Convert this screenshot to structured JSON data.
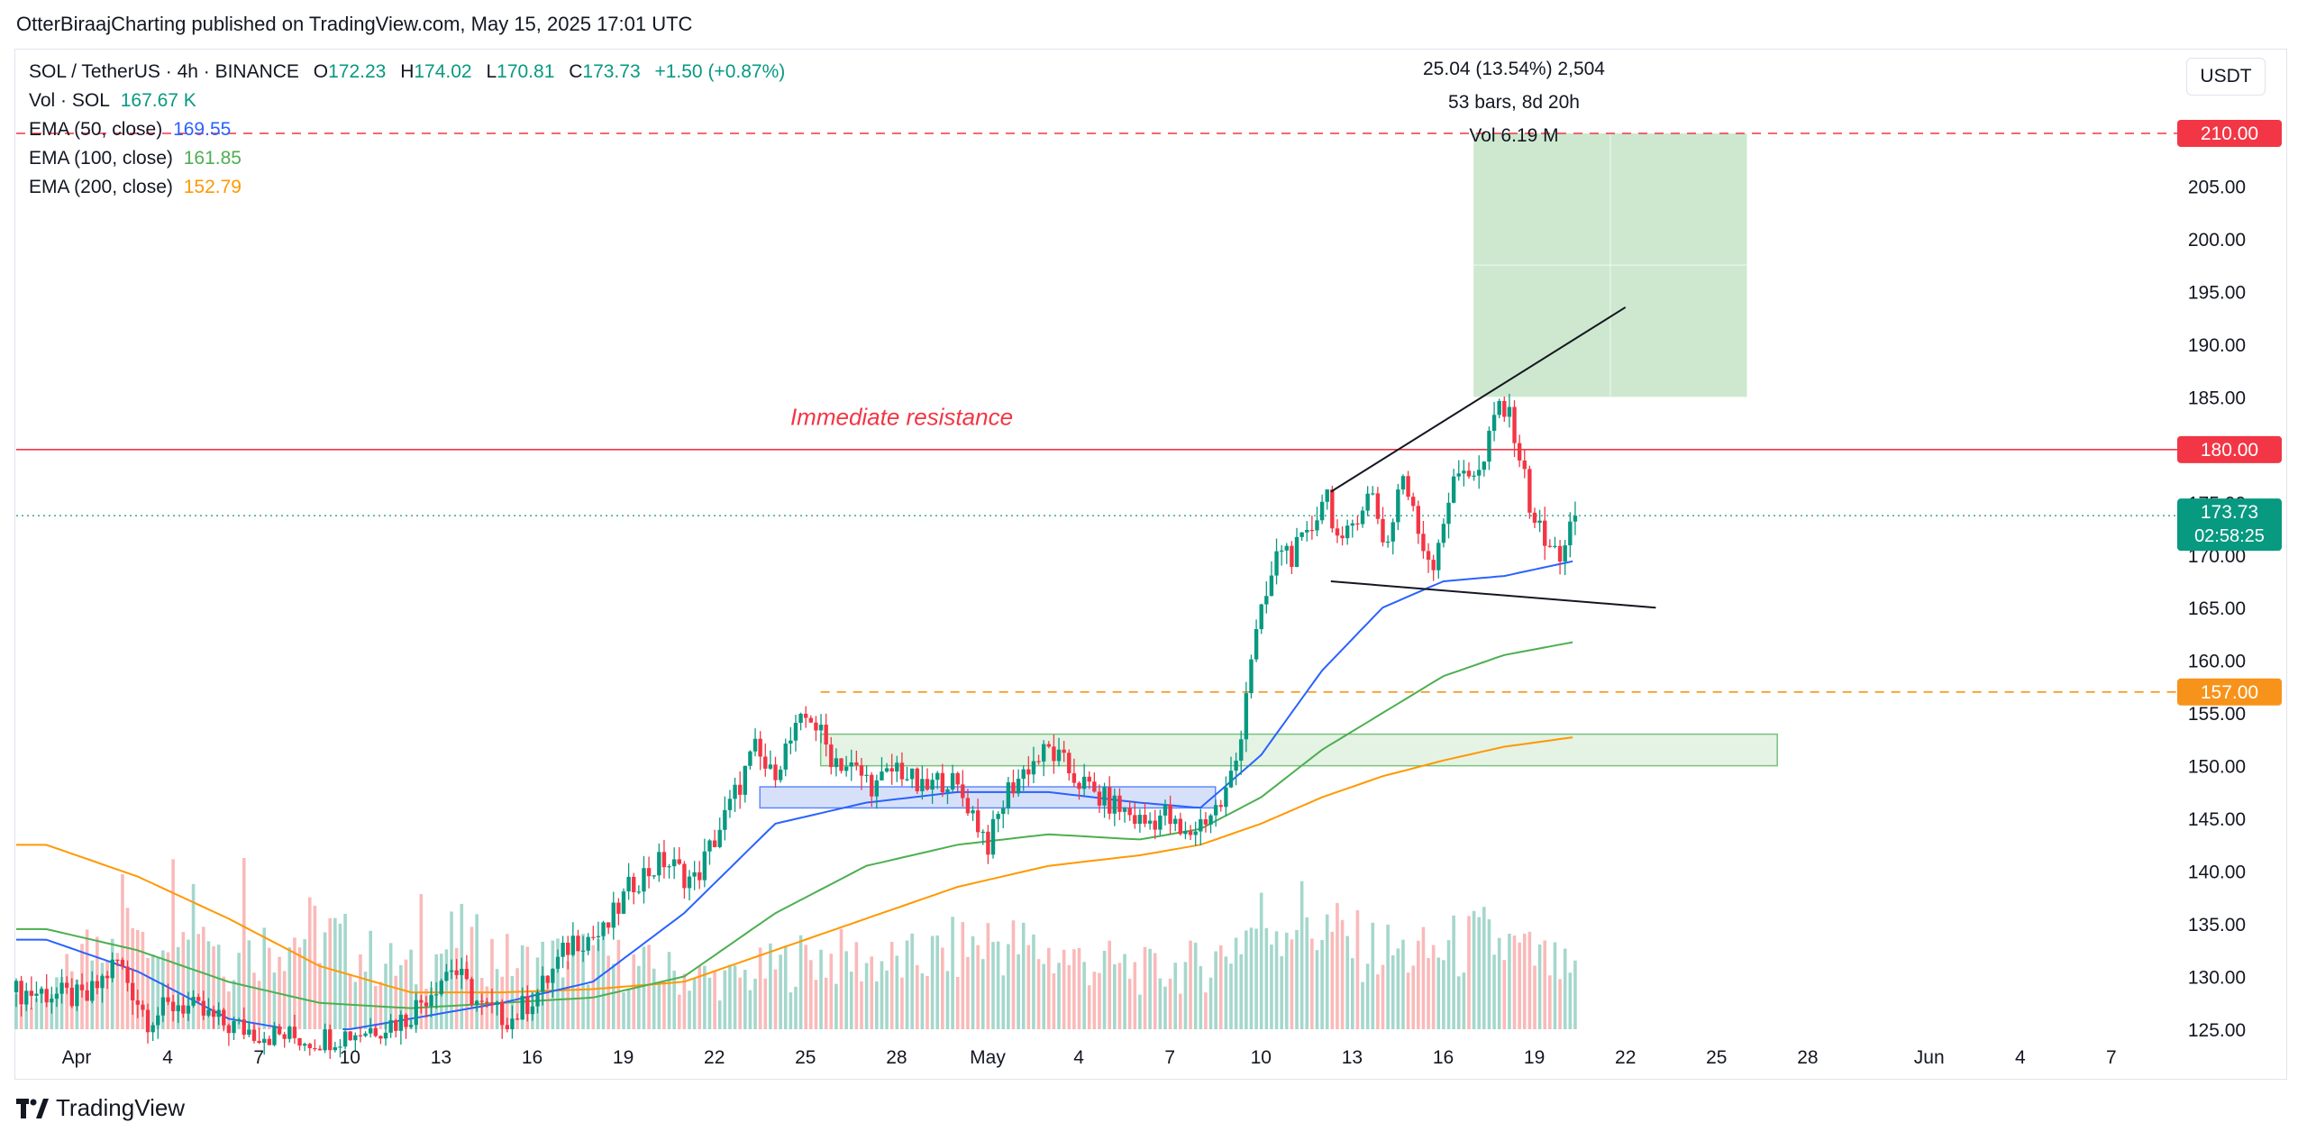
{
  "publisher_line": "OtterBiraajCharting published on TradingView.com, May 15, 2025 17:01 UTC",
  "footer": {
    "brand": "TradingView",
    "logo_icon": "tradingview-logo-icon"
  },
  "currency_button": "USDT",
  "legend": {
    "symbol": "SOL / TetherUS · 4h · BINANCE",
    "o_label": "O",
    "o": "172.23",
    "h_label": "H",
    "h": "174.02",
    "l_label": "L",
    "l": "170.81",
    "c_label": "C",
    "c": "173.73",
    "change": "+1.50 (+0.87%)",
    "vol_label": "Vol · SOL",
    "vol": "167.67 K",
    "ema50_label": "EMA (50, close)",
    "ema50": "169.55",
    "ema100_label": "EMA (100, close)",
    "ema100": "161.85",
    "ema200_label": "EMA (200, close)",
    "ema200": "152.79"
  },
  "measure_box": {
    "line1": "25.04 (13.54%) 2,504",
    "line2": "53 bars, 8d 20h",
    "line3": "Vol 6.19 M"
  },
  "chart_data": {
    "type": "candlestick",
    "symbol": "SOL / TetherUS",
    "interval": "4h",
    "exchange": "BINANCE",
    "y_range": [
      125,
      212
    ],
    "y_ticks": [
      "125.00",
      "130.00",
      "135.00",
      "140.00",
      "145.00",
      "150.00",
      "155.00",
      "160.00",
      "165.00",
      "170.00",
      "175.00",
      "180.00",
      "185.00",
      "190.00",
      "195.00",
      "200.00",
      "205.00",
      "210.00"
    ],
    "x_ticks": [
      {
        "label": "Apr",
        "day": 1
      },
      {
        "label": "4",
        "day": 4
      },
      {
        "label": "7",
        "day": 7
      },
      {
        "label": "10",
        "day": 10
      },
      {
        "label": "13",
        "day": 13
      },
      {
        "label": "16",
        "day": 16
      },
      {
        "label": "19",
        "day": 19
      },
      {
        "label": "22",
        "day": 22
      },
      {
        "label": "25",
        "day": 25
      },
      {
        "label": "28",
        "day": 28
      },
      {
        "label": "May",
        "day": 31
      },
      {
        "label": "4",
        "day": 34
      },
      {
        "label": "7",
        "day": 37
      },
      {
        "label": "10",
        "day": 40
      },
      {
        "label": "13",
        "day": 43
      },
      {
        "label": "16",
        "day": 46
      },
      {
        "label": "19",
        "day": 49
      },
      {
        "label": "22",
        "day": 52
      },
      {
        "label": "25",
        "day": 55
      },
      {
        "label": "28",
        "day": 58
      },
      {
        "label": "Jun",
        "day": 62
      },
      {
        "label": "4",
        "day": 65
      },
      {
        "label": "7",
        "day": 68
      }
    ],
    "price_path": [
      [
        0.0,
        128.5
      ],
      [
        1.5,
        127.8
      ],
      [
        2.5,
        131.5
      ],
      [
        3.5,
        126.0
      ],
      [
        4.5,
        127.5
      ],
      [
        6.0,
        125.5
      ],
      [
        7.5,
        124.5
      ],
      [
        9.0,
        124.0
      ],
      [
        10.5,
        124.8
      ],
      [
        12.0,
        126.0
      ],
      [
        13.5,
        131.0
      ],
      [
        14.5,
        127.0
      ],
      [
        15.5,
        126.0
      ],
      [
        16.5,
        129.0
      ],
      [
        17.5,
        133.5
      ],
      [
        18.5,
        134.0
      ],
      [
        19.5,
        139.0
      ],
      [
        20.5,
        141.0
      ],
      [
        21.5,
        139.0
      ],
      [
        22.5,
        145.0
      ],
      [
        23.5,
        151.5
      ],
      [
        24.0,
        149.0
      ],
      [
        24.6,
        152.0
      ],
      [
        25.3,
        155.0
      ],
      [
        26.0,
        151.0
      ],
      [
        26.8,
        149.5
      ],
      [
        27.5,
        148.0
      ],
      [
        28.2,
        150.0
      ],
      [
        29.0,
        147.5
      ],
      [
        29.8,
        149.0
      ],
      [
        30.5,
        146.5
      ],
      [
        31.2,
        142.5
      ],
      [
        31.8,
        147.5
      ],
      [
        32.5,
        150.0
      ],
      [
        33.2,
        151.5
      ],
      [
        34.0,
        149.0
      ],
      [
        34.8,
        147.0
      ],
      [
        35.5,
        146.0
      ],
      [
        36.3,
        144.5
      ],
      [
        37.0,
        145.5
      ],
      [
        37.6,
        143.0
      ],
      [
        38.3,
        145.0
      ],
      [
        38.9,
        146.5
      ],
      [
        39.4,
        151.0
      ],
      [
        39.8,
        160.0
      ],
      [
        40.3,
        165.5
      ],
      [
        40.8,
        171.0
      ],
      [
        41.2,
        170.0
      ],
      [
        41.7,
        171.5
      ],
      [
        42.3,
        176.5
      ],
      [
        42.8,
        170.0
      ],
      [
        43.3,
        174.0
      ],
      [
        43.8,
        176.0
      ],
      [
        44.3,
        170.5
      ],
      [
        44.8,
        178.0
      ],
      [
        45.3,
        172.5
      ],
      [
        45.8,
        169.0
      ],
      [
        46.3,
        175.0
      ],
      [
        46.8,
        178.5
      ],
      [
        47.4,
        177.5
      ],
      [
        48.0,
        184.5
      ],
      [
        48.5,
        182.0
      ],
      [
        49.0,
        175.0
      ],
      [
        49.5,
        171.0
      ],
      [
        50.0,
        170.0
      ],
      [
        50.5,
        173.73
      ]
    ],
    "volume_path": [
      [
        0.0,
        0.18
      ],
      [
        2.5,
        0.75
      ],
      [
        3.5,
        0.55
      ],
      [
        4.5,
        0.95
      ],
      [
        6.0,
        0.4
      ],
      [
        7.5,
        0.55
      ],
      [
        9.0,
        0.6
      ],
      [
        10.5,
        0.45
      ],
      [
        12.0,
        0.35
      ],
      [
        13.5,
        0.55
      ],
      [
        15.5,
        0.4
      ],
      [
        17.5,
        0.45
      ],
      [
        20.5,
        0.35
      ],
      [
        22.5,
        0.3
      ],
      [
        25.3,
        0.45
      ],
      [
        28.2,
        0.4
      ],
      [
        31.2,
        0.55
      ],
      [
        33.2,
        0.45
      ],
      [
        36.3,
        0.35
      ],
      [
        38.3,
        0.4
      ],
      [
        39.8,
        0.65
      ],
      [
        41.2,
        0.7
      ],
      [
        43.3,
        0.5
      ],
      [
        45.3,
        0.45
      ],
      [
        47.4,
        0.55
      ],
      [
        49.5,
        0.4
      ],
      [
        50.5,
        0.3
      ]
    ],
    "volume_spikes": [
      {
        "day": 6.5,
        "v": 0.95
      },
      {
        "day": 12.3,
        "v": 0.75
      },
      {
        "day": 3.0,
        "v": 0.55
      }
    ],
    "ema50": [
      [
        0,
        133.5
      ],
      [
        3,
        130.5
      ],
      [
        6,
        126.0
      ],
      [
        9,
        124.5
      ],
      [
        12,
        126.0
      ],
      [
        15,
        127.5
      ],
      [
        18,
        129.5
      ],
      [
        21,
        136.0
      ],
      [
        24,
        144.5
      ],
      [
        27,
        146.5
      ],
      [
        30,
        147.5
      ],
      [
        33,
        147.5
      ],
      [
        36,
        146.5
      ],
      [
        38,
        146.0
      ],
      [
        40,
        151.0
      ],
      [
        42,
        159.0
      ],
      [
        44,
        165.0
      ],
      [
        46,
        167.5
      ],
      [
        48,
        168.0
      ],
      [
        50.5,
        169.55
      ]
    ],
    "ema100": [
      [
        0,
        134.5
      ],
      [
        3,
        132.5
      ],
      [
        6,
        129.5
      ],
      [
        9,
        127.5
      ],
      [
        12,
        127.0
      ],
      [
        15,
        127.5
      ],
      [
        18,
        128.0
      ],
      [
        21,
        130.0
      ],
      [
        24,
        136.0
      ],
      [
        27,
        140.5
      ],
      [
        30,
        142.5
      ],
      [
        33,
        143.5
      ],
      [
        36,
        143.0
      ],
      [
        38,
        144.0
      ],
      [
        40,
        147.0
      ],
      [
        42,
        151.5
      ],
      [
        44,
        155.0
      ],
      [
        46,
        158.5
      ],
      [
        48,
        160.5
      ],
      [
        50.5,
        161.85
      ]
    ],
    "ema200": [
      [
        0,
        142.5
      ],
      [
        3,
        139.5
      ],
      [
        6,
        135.5
      ],
      [
        9,
        131.0
      ],
      [
        12,
        128.5
      ],
      [
        15,
        128.5
      ],
      [
        18,
        128.8
      ],
      [
        21,
        129.5
      ],
      [
        24,
        132.5
      ],
      [
        27,
        135.5
      ],
      [
        30,
        138.5
      ],
      [
        33,
        140.5
      ],
      [
        36,
        141.5
      ],
      [
        38,
        142.5
      ],
      [
        40,
        144.5
      ],
      [
        42,
        147.0
      ],
      [
        44,
        149.0
      ],
      [
        46,
        150.5
      ],
      [
        48,
        151.8
      ],
      [
        50.5,
        152.79
      ]
    ],
    "horizontal_lines": [
      {
        "price": 210.0,
        "label": "210.00",
        "color": "#f23645",
        "style": "dashed"
      },
      {
        "price": 180.0,
        "label": "180.00",
        "color": "#f23645",
        "style": "solid"
      },
      {
        "price": 157.0,
        "label": "157.00",
        "color": "#f7931a",
        "style": "dashed",
        "start_day": 25.5
      },
      {
        "price": 173.73,
        "label": "173.73",
        "sublabel": "02:58:25",
        "color": "#089981",
        "style": "dotted"
      }
    ],
    "annotations": [
      {
        "text": "Immediate resistance",
        "day": 24.5,
        "price": 183.0,
        "color": "#f23645"
      }
    ],
    "zones": [
      {
        "name": "target-box",
        "day_from": 47.0,
        "day_to": 56.0,
        "price_from": 185.0,
        "price_to": 210.0,
        "fill": "#c8e6c9"
      },
      {
        "name": "demand-zone",
        "day_from": 25.5,
        "day_to": 57.0,
        "price_from": 150.0,
        "price_to": 153.0,
        "fill": "#dcefdc"
      },
      {
        "name": "consolidation-zone",
        "day_from": 23.5,
        "day_to": 38.5,
        "price_from": 146.0,
        "price_to": 148.0,
        "fill": "#c9d7f7"
      }
    ],
    "trendlines": [
      {
        "from": [
          42.3,
          176.0
        ],
        "to": [
          52.0,
          193.5
        ]
      },
      {
        "from": [
          42.3,
          167.5
        ],
        "to": [
          53.0,
          165.0
        ]
      }
    ],
    "grid": false
  },
  "colors": {
    "up": "#089981",
    "down": "#f23645",
    "ema50": "#2962ff",
    "ema100": "#4caf50",
    "ema200": "#ff9800",
    "vol_up": "#8fcdbf",
    "vol_down": "#f7a9a7"
  }
}
